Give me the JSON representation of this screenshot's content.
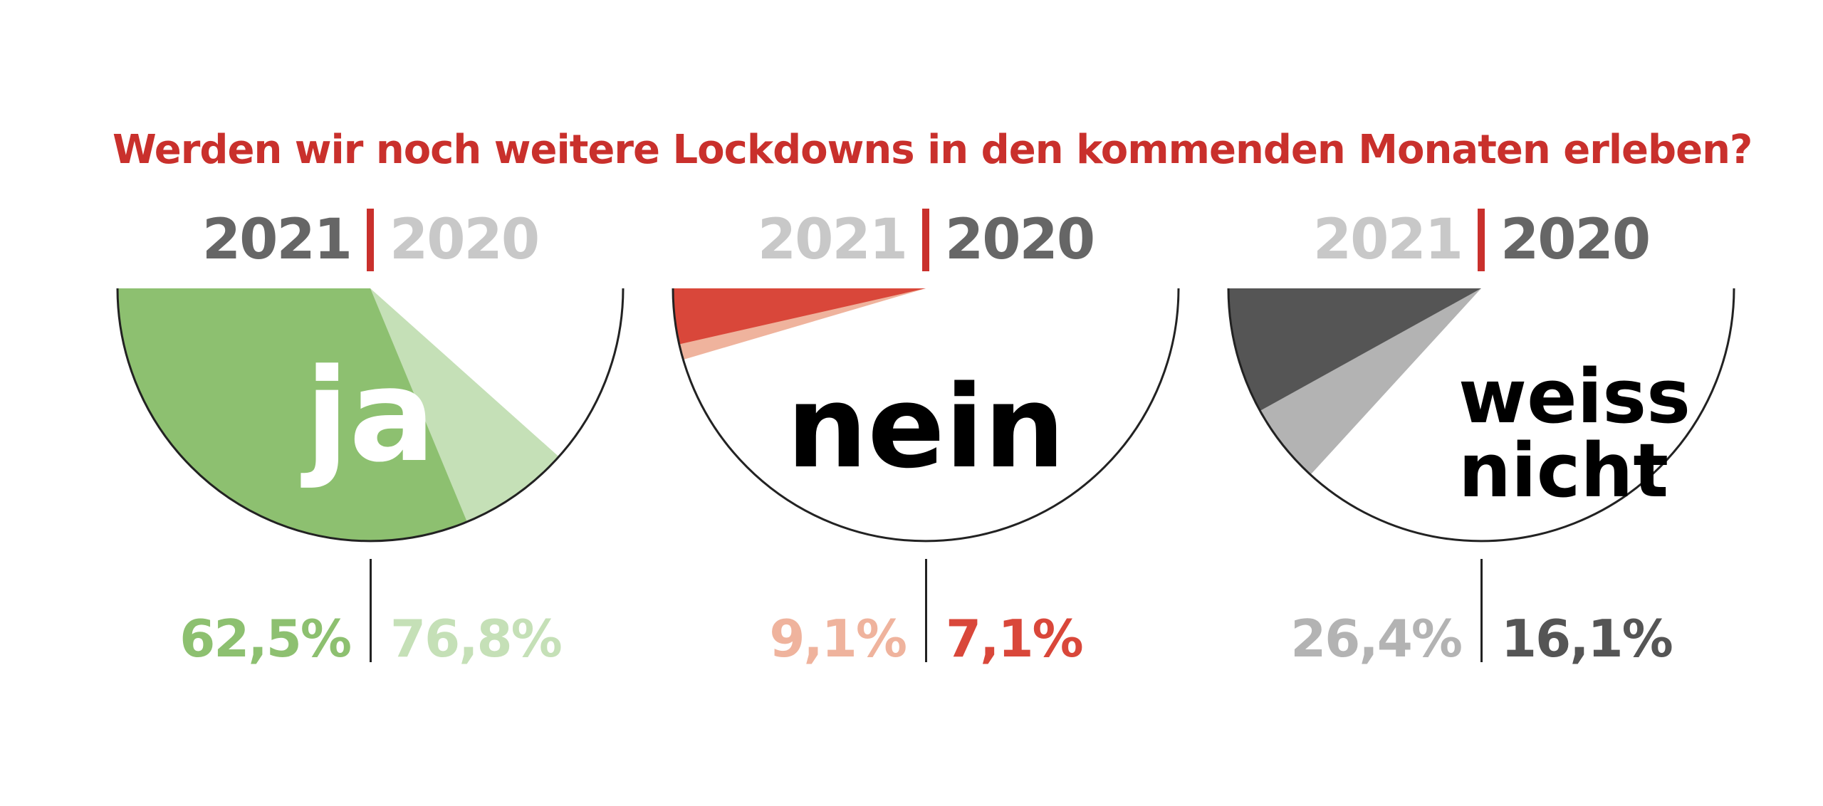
{
  "title": "Werden wir noch weitere Lockdowns in den kommenden Monaten erleben?",
  "colors": {
    "title": "#c9302c",
    "separator": "#c9302c",
    "year_dark": "#666666",
    "year_light": "#c8c8c8"
  },
  "chart_data": [
    {
      "type": "pie",
      "label": "ja",
      "label_color": "#ffffff",
      "years": [
        {
          "year": "2021",
          "value": 62.5,
          "display": "62,5%",
          "color": "#8dc070",
          "emphasis": "dark"
        },
        {
          "year": "2020",
          "value": 76.8,
          "display": "76,8%",
          "color": "#c5e0b7",
          "emphasis": "light"
        }
      ]
    },
    {
      "type": "pie",
      "label": "nein",
      "label_color": "#000000",
      "years": [
        {
          "year": "2021",
          "value": 9.1,
          "display": "9,1%",
          "color": "#efb39d",
          "emphasis": "light"
        },
        {
          "year": "2020",
          "value": 7.1,
          "display": "7,1%",
          "color": "#d9473a",
          "emphasis": "dark"
        }
      ]
    },
    {
      "type": "pie",
      "label": "weiss nicht",
      "label_color": "#000000",
      "years": [
        {
          "year": "2021",
          "value": 26.4,
          "display": "26,4%",
          "color": "#b3b3b3",
          "emphasis": "light"
        },
        {
          "year": "2020",
          "value": 16.1,
          "display": "16,1%",
          "color": "#555555",
          "emphasis": "dark"
        }
      ]
    }
  ]
}
